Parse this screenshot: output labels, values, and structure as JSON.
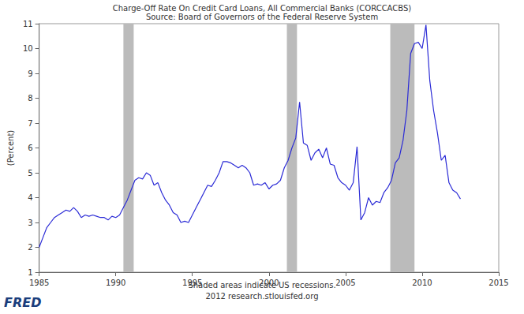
{
  "chart_data": {
    "type": "line",
    "title": "Charge-Off Rate On Credit Card Loans, All Commercial Banks (CORCCACBS)",
    "subtitle": "Source: Board of Governors of the Federal Reserve System",
    "y_label": "(Percent)",
    "annotations": [
      "Shaded areas indicate US recessions.",
      "2012 research.stlouisfed.org",
      "FRED"
    ],
    "color": "#2b2bd6",
    "grid": false,
    "x": [
      1985,
      1985.25,
      1985.5,
      1985.75,
      1986,
      1986.25,
      1986.5,
      1986.75,
      1987,
      1987.25,
      1987.5,
      1987.75,
      1988,
      1988.25,
      1988.5,
      1988.75,
      1989,
      1989.25,
      1989.5,
      1989.75,
      1990,
      1990.25,
      1990.5,
      1990.75,
      1991,
      1991.25,
      1991.5,
      1991.75,
      1992,
      1992.25,
      1992.5,
      1992.75,
      1993,
      1993.25,
      1993.5,
      1993.75,
      1994,
      1994.25,
      1994.5,
      1994.75,
      1995,
      1995.25,
      1995.5,
      1995.75,
      1996,
      1996.25,
      1996.5,
      1996.75,
      1997,
      1997.25,
      1997.5,
      1997.75,
      1998,
      1998.25,
      1998.5,
      1998.75,
      1999,
      1999.25,
      1999.5,
      1999.75,
      2000,
      2000.25,
      2000.5,
      2000.75,
      2001,
      2001.25,
      2001.5,
      2001.75,
      2002,
      2002.25,
      2002.5,
      2002.75,
      2003,
      2003.25,
      2003.5,
      2003.75,
      2004,
      2004.25,
      2004.5,
      2004.75,
      2005,
      2005.25,
      2005.5,
      2005.75,
      2006,
      2006.25,
      2006.5,
      2006.75,
      2007,
      2007.25,
      2007.5,
      2007.75,
      2008,
      2008.25,
      2008.5,
      2008.75,
      2009,
      2009.25,
      2009.5,
      2009.75,
      2010,
      2010.25,
      2010.5,
      2010.75,
      2011,
      2011.25,
      2011.5,
      2011.75,
      2012,
      2012.25,
      2012.5
    ],
    "values": [
      2.0,
      2.4,
      2.8,
      3.0,
      3.2,
      3.3,
      3.4,
      3.5,
      3.45,
      3.6,
      3.45,
      3.2,
      3.3,
      3.25,
      3.3,
      3.25,
      3.2,
      3.2,
      3.1,
      3.25,
      3.2,
      3.3,
      3.6,
      3.9,
      4.3,
      4.7,
      4.8,
      4.75,
      5.0,
      4.9,
      4.5,
      4.6,
      4.2,
      3.9,
      3.7,
      3.4,
      3.3,
      3.0,
      3.05,
      3.0,
      3.3,
      3.6,
      3.9,
      4.2,
      4.5,
      4.45,
      4.7,
      5.0,
      5.45,
      5.45,
      5.4,
      5.3,
      5.2,
      5.3,
      5.2,
      5.0,
      4.5,
      4.55,
      4.5,
      4.6,
      4.35,
      4.5,
      4.55,
      4.7,
      5.2,
      5.5,
      6.0,
      6.4,
      7.85,
      6.2,
      6.1,
      5.5,
      5.8,
      5.95,
      5.6,
      6.0,
      5.35,
      5.3,
      4.8,
      4.6,
      4.5,
      4.3,
      4.6,
      6.05,
      3.1,
      3.4,
      4.0,
      3.7,
      3.85,
      3.8,
      4.2,
      4.4,
      4.7,
      5.4,
      5.6,
      6.3,
      7.5,
      9.8,
      10.2,
      10.25,
      10.0,
      10.95,
      8.7,
      7.5,
      6.6,
      5.5,
      5.7,
      4.6,
      4.3,
      4.2,
      3.95
    ],
    "recessions": [
      [
        1990.5,
        1991.17
      ],
      [
        2001.17,
        2001.83
      ],
      [
        2007.92,
        2009.5
      ]
    ],
    "recession_color": "#bbbbbb",
    "xlim": [
      1985,
      2015
    ],
    "xticks": [
      1985,
      1990,
      1995,
      2000,
      2005,
      2010,
      2015
    ],
    "ylim": [
      1,
      11
    ],
    "yticks": [
      1,
      2,
      3,
      4,
      5,
      6,
      7,
      8,
      9,
      10,
      11
    ]
  }
}
